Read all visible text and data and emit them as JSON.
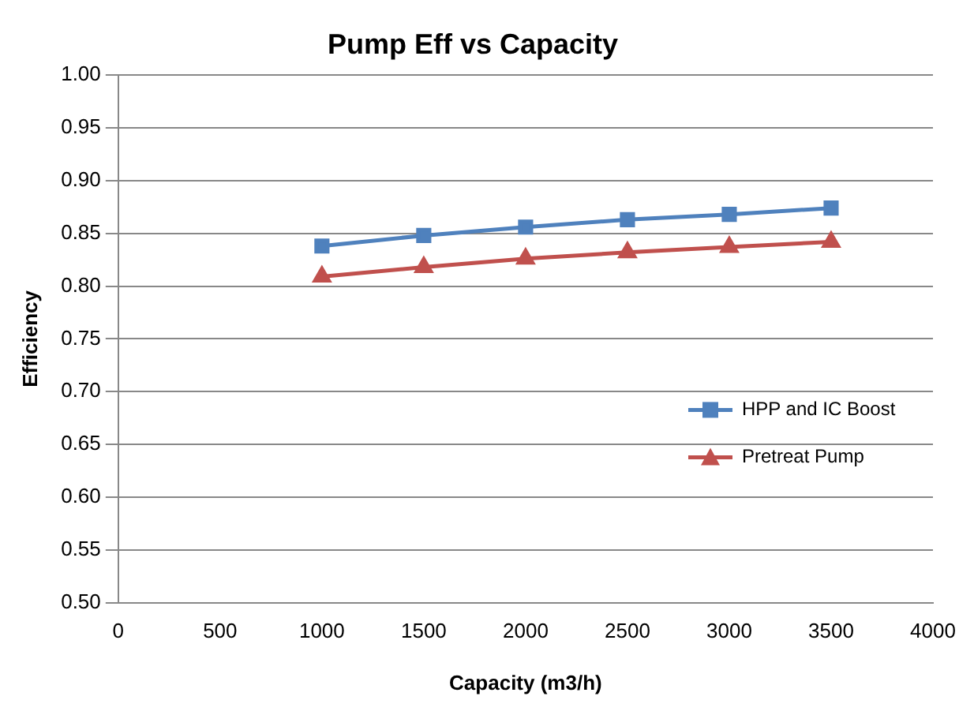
{
  "chart_data": {
    "type": "line",
    "title": "Pump Eff vs Capacity",
    "xlabel": "Capacity (m3/h)",
    "ylabel": "Efficiency",
    "x": [
      1000,
      1500,
      2000,
      2500,
      3000,
      3500
    ],
    "series": [
      {
        "name": "HPP and IC Boost",
        "color": "#4f81bd",
        "marker": "square",
        "values": [
          0.838,
          0.848,
          0.856,
          0.863,
          0.868,
          0.874
        ]
      },
      {
        "name": "Pretreat Pump",
        "color": "#c0504d",
        "marker": "triangle",
        "values": [
          0.809,
          0.818,
          0.826,
          0.832,
          0.837,
          0.842
        ]
      }
    ],
    "xlim": [
      0,
      4000
    ],
    "xticks": [
      0,
      500,
      1000,
      1500,
      2000,
      2500,
      3000,
      3500,
      4000
    ],
    "ylim": [
      0.5,
      1.0
    ],
    "yticks": [
      {
        "value": 0.5,
        "label": "0.50"
      },
      0.55,
      {
        "value": 0.6,
        "label": "0.60"
      },
      0.65,
      {
        "value": 0.7,
        "label": "0.70"
      },
      0.75,
      {
        "value": 0.8,
        "label": "0.80"
      },
      0.85,
      {
        "value": 0.9,
        "label": "0.90"
      },
      0.95,
      {
        "value": 1.0,
        "label": "1.00"
      }
    ],
    "grid": "y",
    "legend": "right"
  }
}
